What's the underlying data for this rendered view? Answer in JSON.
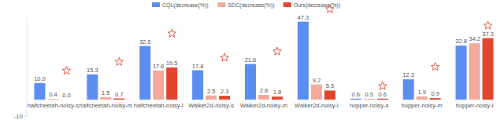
{
  "chart_data": {
    "type": "bar",
    "categories": [
      "halfcheetah-noisy-s",
      "halfcheetah-noisy-m",
      "halfcheetah-noisy-l",
      "Walker2d-noisy-s",
      "Walker2d-noisy-m",
      "Walker2d-noisy-l",
      "hopper-noisy-s",
      "hopper-noisy-m",
      "hopper-noisy-l"
    ],
    "series": [
      {
        "name": "CQL(decrease(%))",
        "color": "#5b8ef0",
        "values": [
          10.0,
          15.3,
          32.5,
          17.8,
          21.6,
          47.3,
          0.6,
          12.3,
          32.8
        ],
        "value_labels": [
          "10.0",
          "15.3",
          "32.5",
          "17.8",
          "21.6",
          "47.3",
          "0.6",
          "12.3",
          "32.8"
        ]
      },
      {
        "name": "SDC(decrease(%))",
        "color": "#f2aa9c",
        "values": [
          0.4,
          1.5,
          17.6,
          2.5,
          2.8,
          9.2,
          0.5,
          1.9,
          34.2
        ],
        "value_labels": [
          "0.4",
          "1.5",
          "17.6",
          "2.5",
          "2.8",
          "9.2",
          "0.5",
          "1.9",
          "34.2"
        ]
      },
      {
        "name": "Ours(decrease(%))",
        "color": "#e2452e",
        "values": [
          0.0,
          0.7,
          19.5,
          2.3,
          1.8,
          5.5,
          0.6,
          0.9,
          37.3
        ],
        "value_labels": [
          "0.0",
          "0.7",
          "19.5",
          "2.3",
          "1.8",
          "5.5",
          "0.6",
          "0.9",
          "37.3"
        ]
      }
    ],
    "ylim": [
      -10,
      50
    ],
    "yticks": [
      -10
    ],
    "grid": false,
    "legend": "top",
    "data_labels": true
  }
}
